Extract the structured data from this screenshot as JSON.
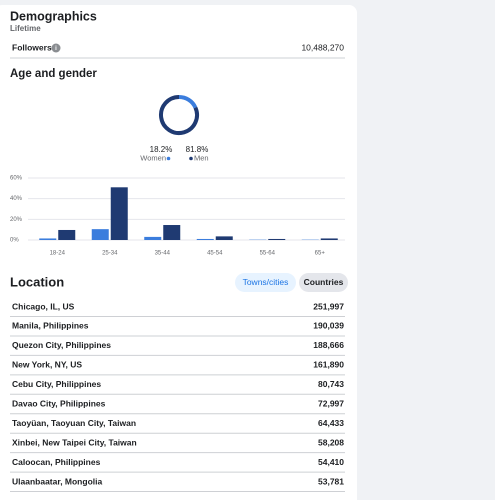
{
  "header": {
    "title": "Demographics",
    "subtitle": "Lifetime"
  },
  "followers": {
    "label": "Followers",
    "value": "10,488,270"
  },
  "age_gender": {
    "title": "Age and gender",
    "donut": {
      "type": "pie",
      "categories": [
        "Women",
        "Men"
      ],
      "values": [
        18.2,
        81.8
      ],
      "value_labels": [
        "18.2%",
        "81.8%"
      ],
      "colors": [
        "#3b7ddd",
        "#1f3a72"
      ]
    },
    "chart_data": {
      "type": "bar",
      "categories": [
        "18-24",
        "25-34",
        "35-44",
        "45-54",
        "55-64",
        "65+"
      ],
      "series": [
        {
          "color": "#3b7ddd",
          "values": [
            1.5,
            10.5,
            3,
            1,
            0.3,
            0.3
          ]
        },
        {
          "color": "#1f3a72",
          "values": [
            9.7,
            51,
            14.5,
            3.5,
            1,
            1.5
          ]
        }
      ],
      "ylim": [
        0,
        60
      ],
      "yticks": [
        {
          "value": 0,
          "label": "0%"
        },
        {
          "value": 20,
          "label": "20%"
        },
        {
          "value": 40,
          "label": "40%"
        },
        {
          "value": 60,
          "label": "60%"
        }
      ],
      "grid": true
    }
  },
  "location": {
    "title": "Location",
    "tabs": [
      "Towns/cities",
      "Countries"
    ],
    "rows": [
      [
        "Chicago, IL, US",
        "251,997"
      ],
      [
        "Manila, Philippines",
        "190,039"
      ],
      [
        "Quezon City, Philippines",
        "188,666"
      ],
      [
        "New York, NY, US",
        "161,890"
      ],
      [
        "Cebu City, Philippines",
        "80,743"
      ],
      [
        "Davao City, Philippines",
        "72,997"
      ],
      [
        "Taoyüan, Taoyuan City, Taiwan",
        "64,433"
      ],
      [
        "Xinbei, New Taipei City, Taiwan",
        "58,208"
      ],
      [
        "Caloocan, Philippines",
        "54,410"
      ],
      [
        "Ulaanbaatar, Mongolia",
        "53,781"
      ]
    ]
  }
}
